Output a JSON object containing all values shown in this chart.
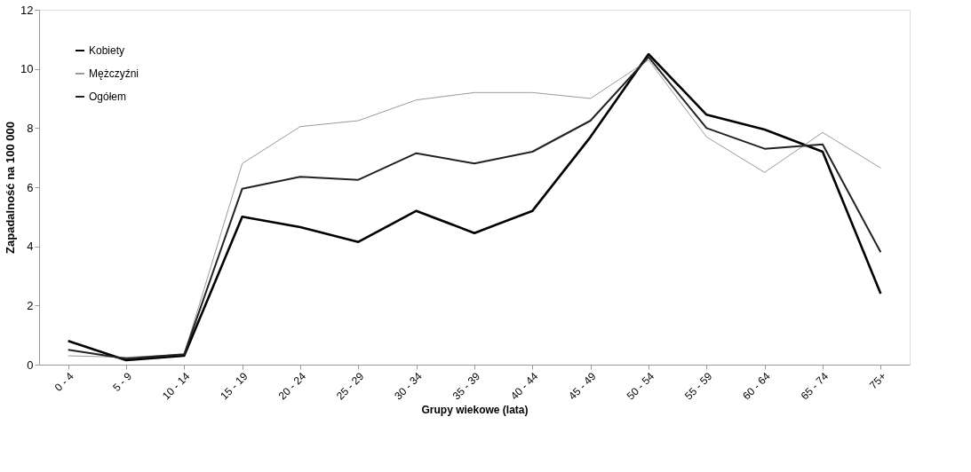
{
  "chart_data": {
    "type": "line",
    "xlabel": "Grupy wiekowe (lata)",
    "ylabel": "Zapadalność na 100 000",
    "categories": [
      "0 - 4",
      "5 - 9",
      "10 - 14",
      "15 - 19",
      "20 - 24",
      "25 - 29",
      "30 - 34",
      "35 - 39",
      "40 - 44",
      "45 - 49",
      "50 - 54",
      "55 - 59",
      "60 - 64",
      "65 - 74",
      "75+"
    ],
    "series": [
      {
        "name": "Kobiety",
        "color": "#000000",
        "values": [
          0.8,
          0.15,
          0.3,
          5.0,
          4.65,
          4.15,
          5.2,
          4.45,
          5.2,
          7.7,
          10.5,
          8.45,
          7.95,
          7.2,
          2.4
        ]
      },
      {
        "name": "Mężczyźni",
        "color": "#9a9a9a",
        "values": [
          0.3,
          0.25,
          0.35,
          6.8,
          8.05,
          8.25,
          8.95,
          9.2,
          9.2,
          9.0,
          10.3,
          7.7,
          6.5,
          7.85,
          6.65
        ]
      },
      {
        "name": "Ogółem",
        "color": "#222222",
        "values": [
          0.5,
          0.2,
          0.35,
          5.95,
          6.35,
          6.25,
          7.15,
          6.8,
          7.2,
          8.25,
          10.4,
          8.0,
          7.3,
          7.45,
          3.8
        ]
      }
    ],
    "ylim": [
      0,
      12
    ],
    "yticks": [
      0,
      2,
      4,
      6,
      8,
      10,
      12
    ],
    "grid": false,
    "legend": "top left",
    "marker": "none",
    "line_style": "solid"
  }
}
